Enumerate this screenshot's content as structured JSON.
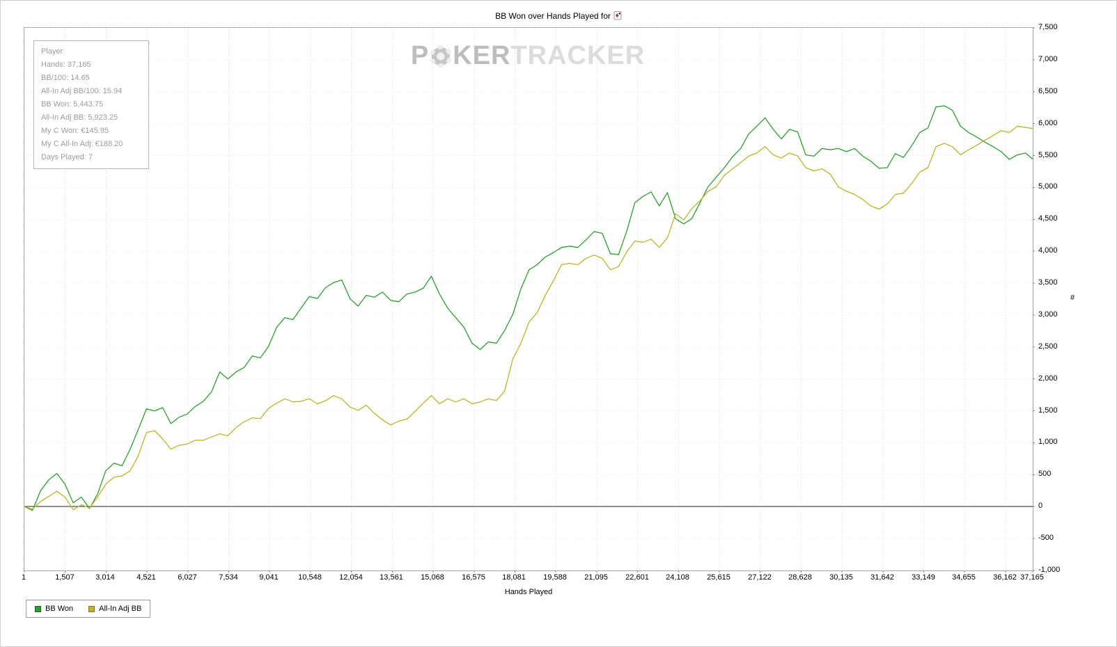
{
  "title": "BB Won over Hands Played for",
  "watermark": {
    "p": "P",
    "ker": "KER",
    "tracker": "TRACKER"
  },
  "stats_box": {
    "lines": [
      "Player:",
      "Hands: 37,165",
      "BB/100: 14.65",
      "All-In Adj BB/100: 15.94",
      "BB Won: 5,443.75",
      "All-In Adj BB: 5,923.25",
      "My C Won: €145.95",
      "My C All-In Adj: €188.20",
      "Days Played: 7"
    ]
  },
  "legend": {
    "items": [
      {
        "label": "BB Won",
        "color": "#2f9e32",
        "border": "#15651a"
      },
      {
        "label": "All-In Adj BB",
        "color": "#bdb32c",
        "border": "#7d7714"
      }
    ]
  },
  "colors": {
    "grid_vertical": "#dcdcdc",
    "grid_horizontal": "#ececec",
    "zero_line": "#222222",
    "axis_tick": "#888888"
  },
  "chart_data": {
    "type": "line",
    "title": "BB Won over Hands Played",
    "xlabel": "Hands Played",
    "ylabel": "#",
    "grid": true,
    "legend_position": "bottom-left",
    "xlim": [
      1,
      37165
    ],
    "ylim": [
      -1000,
      7500
    ],
    "x_tick_values": [
      1,
      1507,
      3014,
      4521,
      6027,
      7534,
      9041,
      10548,
      12054,
      13561,
      15068,
      16575,
      18081,
      19588,
      21095,
      22601,
      24108,
      25615,
      27122,
      28628,
      30135,
      31642,
      33149,
      34655,
      36162,
      37165
    ],
    "x_tick_labels": [
      "1",
      "1,507",
      "3,014",
      "4,521",
      "6,027",
      "7,534",
      "9,041",
      "10,548",
      "12,054",
      "13,561",
      "15,068",
      "16,575",
      "18,081",
      "19,588",
      "21,095",
      "22,601",
      "24,108",
      "25,615",
      "27,122",
      "28,628",
      "30,135",
      "31,642",
      "33,149",
      "34,655",
      "36,162",
      "37,165"
    ],
    "y_tick_values": [
      7500,
      7000,
      6500,
      6000,
      5500,
      5000,
      4500,
      4000,
      3500,
      3000,
      2500,
      2000,
      1500,
      1000,
      500,
      0,
      -500,
      -1000
    ],
    "y_tick_labels": [
      "7,500",
      "7,000",
      "6,500",
      "6,000",
      "5,500",
      "5,000",
      "4,500",
      "4,000",
      "3,500",
      "3,000",
      "2,500",
      "2,000",
      "1,500",
      "1,000",
      "500",
      "0",
      "-500",
      "-1,000"
    ],
    "series": [
      {
        "name": "BB Won",
        "color": "#2f9e32",
        "final_value": 5443.75,
        "points": [
          [
            0,
            0
          ],
          [
            300,
            -60
          ],
          [
            600,
            250
          ],
          [
            900,
            420
          ],
          [
            1200,
            520
          ],
          [
            1500,
            350
          ],
          [
            1800,
            60
          ],
          [
            2100,
            150
          ],
          [
            2400,
            -30
          ],
          [
            2700,
            200
          ],
          [
            3000,
            560
          ],
          [
            3300,
            680
          ],
          [
            3600,
            640
          ],
          [
            3900,
            900
          ],
          [
            4200,
            1210
          ],
          [
            4500,
            1530
          ],
          [
            4800,
            1500
          ],
          [
            5100,
            1550
          ],
          [
            5400,
            1300
          ],
          [
            5700,
            1400
          ],
          [
            6000,
            1450
          ],
          [
            6300,
            1570
          ],
          [
            6600,
            1650
          ],
          [
            6900,
            1800
          ],
          [
            7200,
            2110
          ],
          [
            7500,
            2000
          ],
          [
            7800,
            2110
          ],
          [
            8100,
            2180
          ],
          [
            8400,
            2360
          ],
          [
            8700,
            2330
          ],
          [
            9000,
            2510
          ],
          [
            9300,
            2810
          ],
          [
            9600,
            2960
          ],
          [
            9900,
            2930
          ],
          [
            10200,
            3110
          ],
          [
            10500,
            3290
          ],
          [
            10800,
            3260
          ],
          [
            11100,
            3430
          ],
          [
            11400,
            3510
          ],
          [
            11700,
            3550
          ],
          [
            12000,
            3260
          ],
          [
            12300,
            3140
          ],
          [
            12600,
            3310
          ],
          [
            12900,
            3280
          ],
          [
            13200,
            3360
          ],
          [
            13500,
            3230
          ],
          [
            13800,
            3210
          ],
          [
            14100,
            3330
          ],
          [
            14400,
            3360
          ],
          [
            14700,
            3420
          ],
          [
            15000,
            3610
          ],
          [
            15300,
            3330
          ],
          [
            15600,
            3110
          ],
          [
            15900,
            2960
          ],
          [
            16200,
            2810
          ],
          [
            16500,
            2560
          ],
          [
            16800,
            2460
          ],
          [
            17100,
            2580
          ],
          [
            17400,
            2560
          ],
          [
            17700,
            2760
          ],
          [
            18000,
            3010
          ],
          [
            18300,
            3410
          ],
          [
            18600,
            3710
          ],
          [
            18900,
            3790
          ],
          [
            19200,
            3910
          ],
          [
            19500,
            3980
          ],
          [
            19800,
            4060
          ],
          [
            20100,
            4080
          ],
          [
            20400,
            4060
          ],
          [
            20700,
            4180
          ],
          [
            21000,
            4310
          ],
          [
            21300,
            4280
          ],
          [
            21600,
            3960
          ],
          [
            21900,
            3950
          ],
          [
            22200,
            4310
          ],
          [
            22500,
            4760
          ],
          [
            22800,
            4860
          ],
          [
            23100,
            4930
          ],
          [
            23400,
            4710
          ],
          [
            23700,
            4920
          ],
          [
            24000,
            4510
          ],
          [
            24300,
            4430
          ],
          [
            24600,
            4510
          ],
          [
            24900,
            4760
          ],
          [
            25200,
            5010
          ],
          [
            25500,
            5160
          ],
          [
            25800,
            5310
          ],
          [
            26100,
            5480
          ],
          [
            26400,
            5610
          ],
          [
            26700,
            5840
          ],
          [
            27000,
            5960
          ],
          [
            27300,
            6090
          ],
          [
            27600,
            5910
          ],
          [
            27900,
            5760
          ],
          [
            28200,
            5910
          ],
          [
            28500,
            5870
          ],
          [
            28800,
            5510
          ],
          [
            29100,
            5490
          ],
          [
            29400,
            5610
          ],
          [
            29700,
            5590
          ],
          [
            30000,
            5610
          ],
          [
            30300,
            5560
          ],
          [
            30600,
            5610
          ],
          [
            30900,
            5490
          ],
          [
            31200,
            5410
          ],
          [
            31500,
            5300
          ],
          [
            31800,
            5310
          ],
          [
            32100,
            5530
          ],
          [
            32400,
            5470
          ],
          [
            32700,
            5650
          ],
          [
            33000,
            5860
          ],
          [
            33300,
            5930
          ],
          [
            33600,
            6260
          ],
          [
            33900,
            6280
          ],
          [
            34200,
            6210
          ],
          [
            34500,
            5960
          ],
          [
            34800,
            5860
          ],
          [
            35100,
            5790
          ],
          [
            35400,
            5710
          ],
          [
            35700,
            5640
          ],
          [
            36000,
            5560
          ],
          [
            36300,
            5440
          ],
          [
            36600,
            5510
          ],
          [
            36900,
            5540
          ],
          [
            37165,
            5443.75
          ]
        ]
      },
      {
        "name": "All-In Adj BB",
        "color": "#bdb32c",
        "final_value": 5923.25,
        "points": [
          [
            0,
            0
          ],
          [
            300,
            -40
          ],
          [
            600,
            80
          ],
          [
            900,
            160
          ],
          [
            1200,
            240
          ],
          [
            1500,
            150
          ],
          [
            1800,
            -50
          ],
          [
            2100,
            30
          ],
          [
            2400,
            -20
          ],
          [
            2700,
            150
          ],
          [
            3000,
            350
          ],
          [
            3300,
            460
          ],
          [
            3600,
            480
          ],
          [
            3900,
            560
          ],
          [
            4200,
            800
          ],
          [
            4500,
            1160
          ],
          [
            4800,
            1190
          ],
          [
            5100,
            1060
          ],
          [
            5400,
            900
          ],
          [
            5700,
            960
          ],
          [
            6000,
            980
          ],
          [
            6300,
            1040
          ],
          [
            6600,
            1040
          ],
          [
            6900,
            1090
          ],
          [
            7200,
            1140
          ],
          [
            7500,
            1110
          ],
          [
            7800,
            1240
          ],
          [
            8100,
            1330
          ],
          [
            8400,
            1390
          ],
          [
            8700,
            1380
          ],
          [
            9000,
            1540
          ],
          [
            9300,
            1620
          ],
          [
            9600,
            1690
          ],
          [
            9900,
            1640
          ],
          [
            10200,
            1650
          ],
          [
            10500,
            1690
          ],
          [
            10800,
            1610
          ],
          [
            11100,
            1660
          ],
          [
            11400,
            1740
          ],
          [
            11700,
            1690
          ],
          [
            12000,
            1560
          ],
          [
            12300,
            1510
          ],
          [
            12600,
            1590
          ],
          [
            12900,
            1460
          ],
          [
            13200,
            1360
          ],
          [
            13500,
            1280
          ],
          [
            13800,
            1340
          ],
          [
            14100,
            1370
          ],
          [
            14400,
            1490
          ],
          [
            14700,
            1620
          ],
          [
            15000,
            1740
          ],
          [
            15300,
            1610
          ],
          [
            15600,
            1690
          ],
          [
            15900,
            1640
          ],
          [
            16200,
            1690
          ],
          [
            16500,
            1610
          ],
          [
            16800,
            1640
          ],
          [
            17100,
            1690
          ],
          [
            17400,
            1660
          ],
          [
            17700,
            1810
          ],
          [
            18000,
            2310
          ],
          [
            18300,
            2560
          ],
          [
            18600,
            2890
          ],
          [
            18900,
            3040
          ],
          [
            19200,
            3310
          ],
          [
            19500,
            3540
          ],
          [
            19800,
            3790
          ],
          [
            20100,
            3810
          ],
          [
            20400,
            3790
          ],
          [
            20700,
            3890
          ],
          [
            21000,
            3940
          ],
          [
            21300,
            3890
          ],
          [
            21600,
            3710
          ],
          [
            21900,
            3760
          ],
          [
            22200,
            3990
          ],
          [
            22500,
            4160
          ],
          [
            22800,
            4140
          ],
          [
            23100,
            4190
          ],
          [
            23400,
            4060
          ],
          [
            23700,
            4210
          ],
          [
            24000,
            4590
          ],
          [
            24300,
            4490
          ],
          [
            24600,
            4670
          ],
          [
            24900,
            4790
          ],
          [
            25200,
            4940
          ],
          [
            25500,
            5010
          ],
          [
            25800,
            5190
          ],
          [
            26100,
            5290
          ],
          [
            26400,
            5390
          ],
          [
            26700,
            5490
          ],
          [
            27000,
            5540
          ],
          [
            27300,
            5640
          ],
          [
            27600,
            5510
          ],
          [
            27900,
            5460
          ],
          [
            28200,
            5540
          ],
          [
            28500,
            5490
          ],
          [
            28800,
            5310
          ],
          [
            29100,
            5260
          ],
          [
            29400,
            5290
          ],
          [
            29700,
            5210
          ],
          [
            30000,
            5010
          ],
          [
            30300,
            4940
          ],
          [
            30600,
            4890
          ],
          [
            30900,
            4810
          ],
          [
            31200,
            4710
          ],
          [
            31500,
            4660
          ],
          [
            31800,
            4740
          ],
          [
            32100,
            4890
          ],
          [
            32400,
            4910
          ],
          [
            32700,
            5060
          ],
          [
            33000,
            5240
          ],
          [
            33300,
            5310
          ],
          [
            33600,
            5640
          ],
          [
            33900,
            5690
          ],
          [
            34200,
            5640
          ],
          [
            34500,
            5510
          ],
          [
            34800,
            5590
          ],
          [
            35100,
            5660
          ],
          [
            35400,
            5740
          ],
          [
            35700,
            5810
          ],
          [
            36000,
            5890
          ],
          [
            36300,
            5860
          ],
          [
            36600,
            5960
          ],
          [
            36900,
            5940
          ],
          [
            37165,
            5923.25
          ]
        ]
      }
    ]
  },
  "axes": {
    "x_label": "Hands Played",
    "y_label": "#"
  }
}
